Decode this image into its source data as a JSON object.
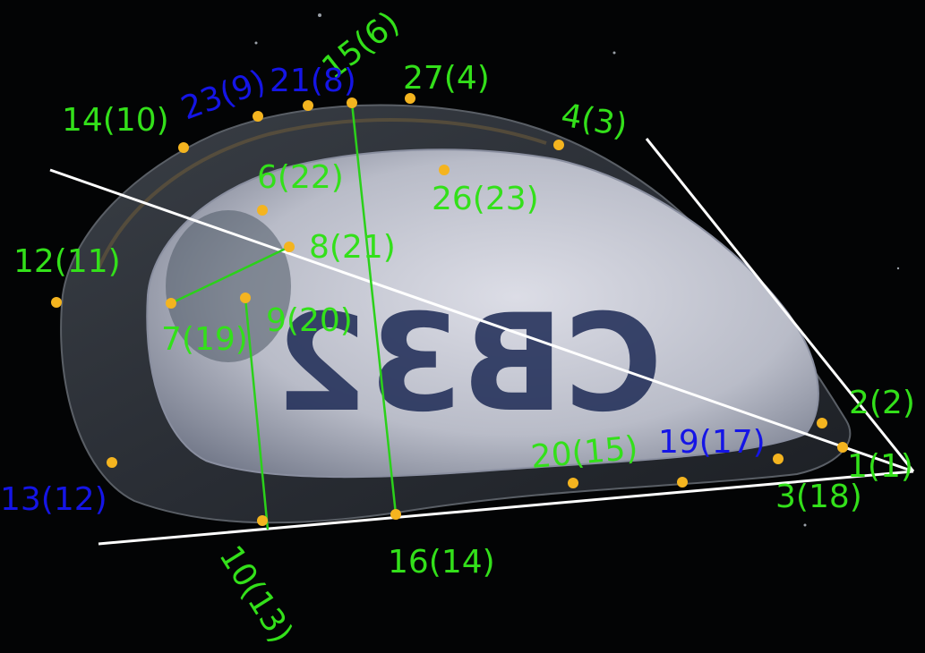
{
  "colors": {
    "background": "#000000",
    "landmark_dot": "#f4b41f",
    "label_green": "#33e01a",
    "label_blue": "#1515e6",
    "measure_line_green": "#2bd11a",
    "outline_line_white": "#ffffff",
    "shell_outer": "#2b3038",
    "shell_inner": "#c9cbd4",
    "ink_marking": "#1d2a55"
  },
  "shell_marking": "CB32",
  "landmarks": [
    {
      "id": "lm-1-1",
      "label": "1(1)",
      "color": "green"
    },
    {
      "id": "lm-2-2",
      "label": "2(2)",
      "color": "green"
    },
    {
      "id": "lm-3-18",
      "label": "3(18)",
      "color": "green"
    },
    {
      "id": "lm-4-3",
      "label": "4(3)",
      "color": "green"
    },
    {
      "id": "lm-6-22",
      "label": "6(22)",
      "color": "green"
    },
    {
      "id": "lm-7-19",
      "label": "7(19)",
      "color": "green"
    },
    {
      "id": "lm-8-21",
      "label": "8(21)",
      "color": "green"
    },
    {
      "id": "lm-9-20",
      "label": "9(20)",
      "color": "green"
    },
    {
      "id": "lm-10-13",
      "label": "10(13)",
      "color": "green"
    },
    {
      "id": "lm-12-11",
      "label": "12(11)",
      "color": "green"
    },
    {
      "id": "lm-13-12",
      "label": "13(12)",
      "color": "blue"
    },
    {
      "id": "lm-14-10",
      "label": "14(10)",
      "color": "green"
    },
    {
      "id": "lm-15-6",
      "label": "15(6)",
      "color": "green"
    },
    {
      "id": "lm-16-14",
      "label": "16(14)",
      "color": "green"
    },
    {
      "id": "lm-19-17",
      "label": "19(17)",
      "color": "blue"
    },
    {
      "id": "lm-20-15",
      "label": "20(15)",
      "color": "green"
    },
    {
      "id": "lm-21-8",
      "label": "21(8)",
      "color": "blue"
    },
    {
      "id": "lm-23-9",
      "label": "23(9)",
      "color": "blue"
    },
    {
      "id": "lm-26-23",
      "label": "26(23)",
      "color": "green"
    },
    {
      "id": "lm-27-4",
      "label": "27(4)",
      "color": "green"
    }
  ]
}
